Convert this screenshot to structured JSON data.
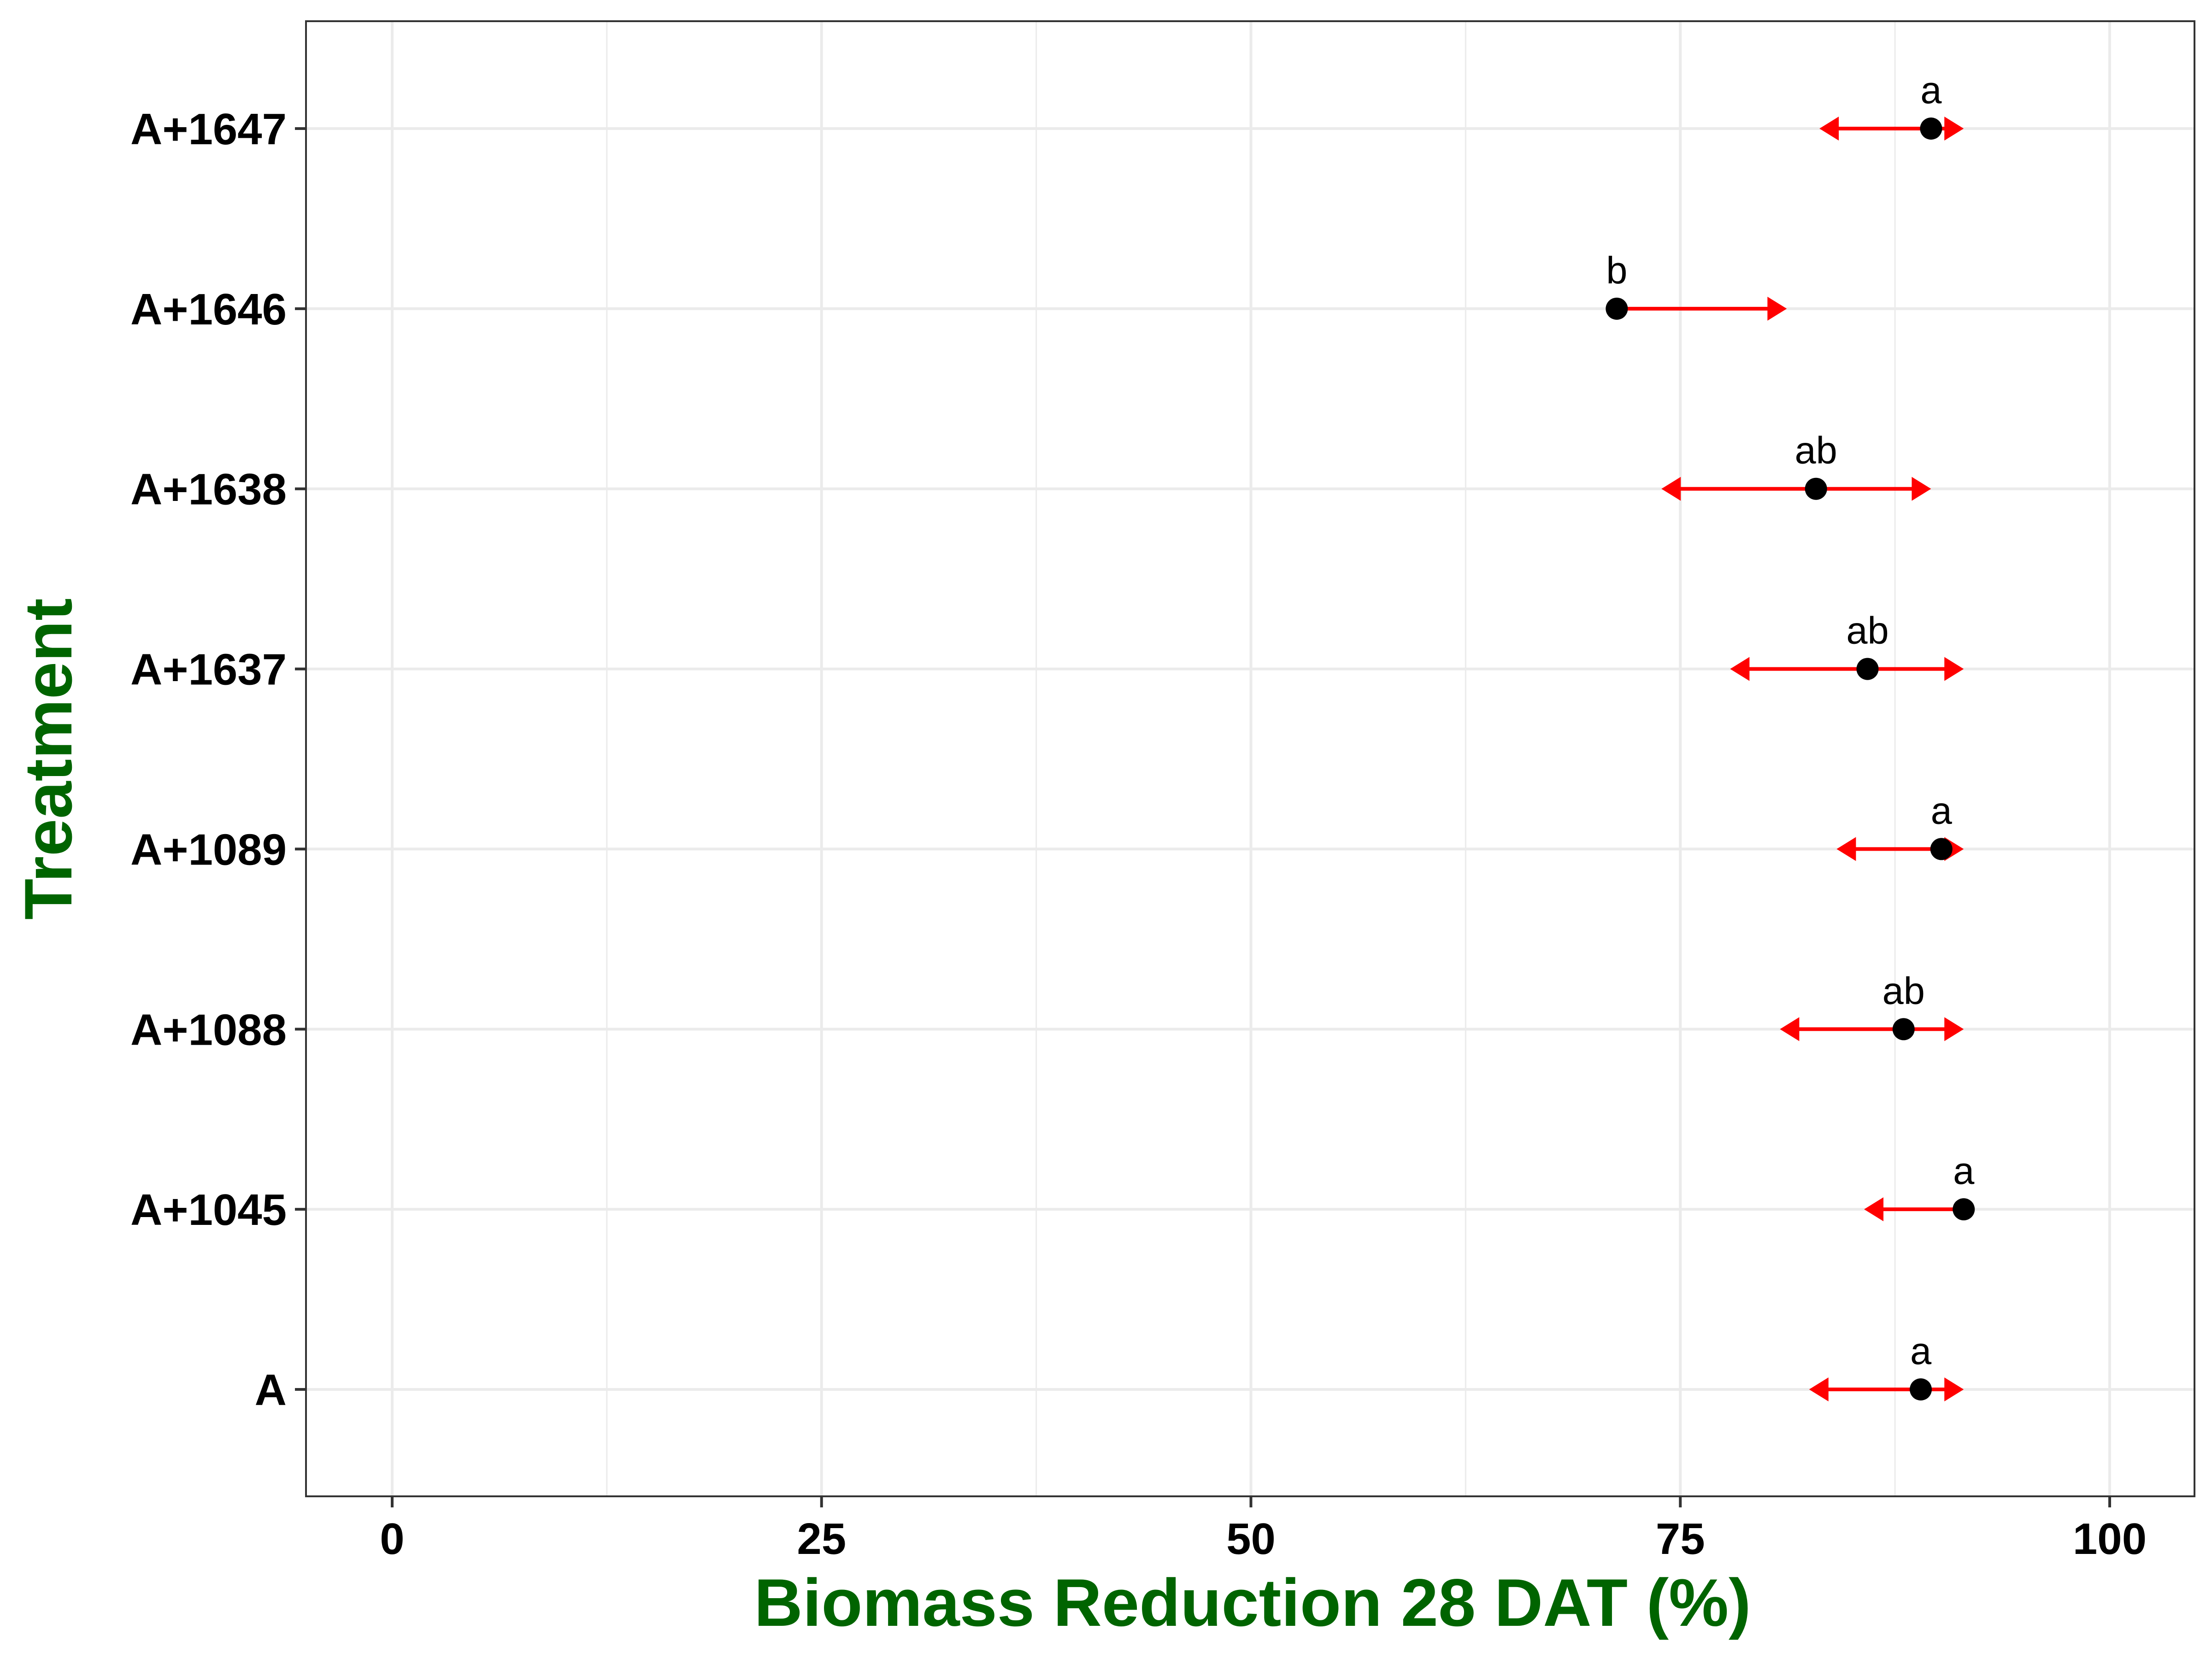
{
  "chart_data": {
    "type": "scatter",
    "xlabel": "Biomass Reduction 28 DAT (%)",
    "ylabel": "Treatment",
    "xlim": [
      -5,
      105
    ],
    "x_ticks": [
      0,
      25,
      50,
      75,
      100
    ],
    "categories": [
      "A",
      "A+1045",
      "A+1088",
      "A+1089",
      "A+1637",
      "A+1638",
      "A+1646",
      "A+1647"
    ],
    "series": [
      {
        "values": [
          89,
          91.5,
          88,
          90.2,
          85.9,
          82.9,
          71.3,
          89.6
        ],
        "lower": [
          82.5,
          85.7,
          80.8,
          84.1,
          77.9,
          73.9,
          71.3,
          83.1
        ],
        "upper": [
          91.5,
          91.5,
          91.5,
          91.5,
          91.5,
          89.6,
          81.2,
          91.5
        ],
        "letters": [
          "a",
          "a",
          "ab",
          "a",
          "ab",
          "ab",
          "b",
          "a"
        ]
      }
    ],
    "grid": true,
    "colors": {
      "point": "#000000",
      "interval": "#ff0000",
      "axis_title": "#006400",
      "grid": "#ebebeb",
      "panel_border": "#333333"
    }
  }
}
